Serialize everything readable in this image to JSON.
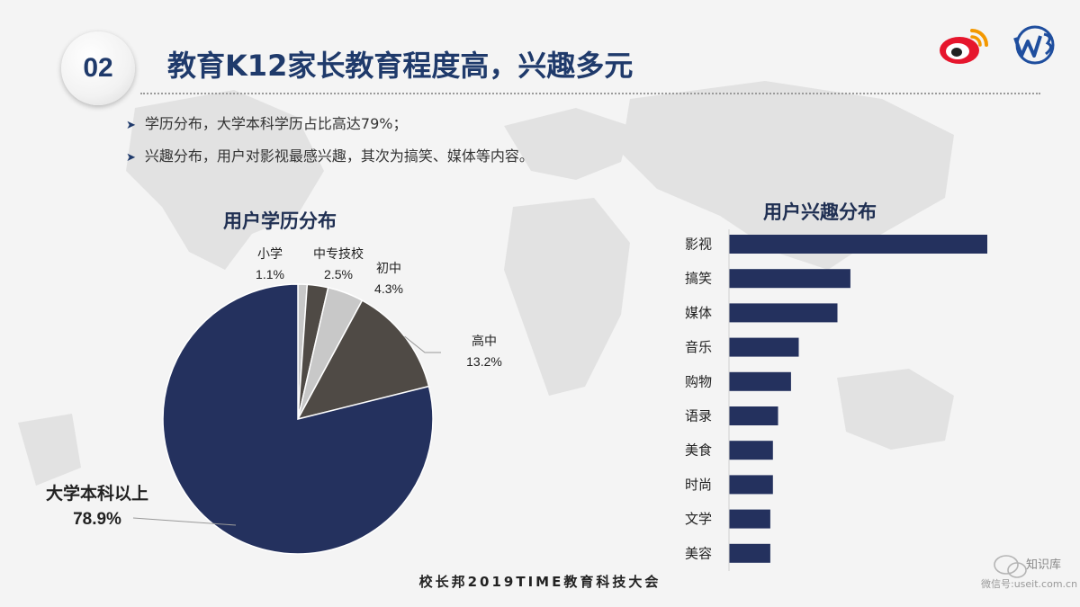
{
  "header": {
    "section_number": "02",
    "title": "教育K12家长教育程度高，兴趣多元"
  },
  "bullets": [
    "学历分布，大学本科学历占比高达79%；",
    "兴趣分布，用户对影视最感兴趣，其次为搞笑、媒体等内容。"
  ],
  "footer": "校长邦2019TIME教育科技大会",
  "watermark": {
    "name": "知识库",
    "site": "微信号:useit.com.cn"
  },
  "colors": {
    "navy": "#24315e",
    "dark_brown": "#4f4a45",
    "gray": "#c8c8c8",
    "title_blue": "#1f3a6b"
  },
  "chart_data": [
    {
      "type": "pie",
      "title": "用户学历分布",
      "slices": [
        {
          "label": "小学",
          "value": 1.1,
          "display": "1.1%",
          "color": "#c8c8c8"
        },
        {
          "label": "中专技校",
          "value": 2.5,
          "display": "2.5%",
          "color": "#4f4a45"
        },
        {
          "label": "初中",
          "value": 4.3,
          "display": "4.3%",
          "color": "#c8c8c8"
        },
        {
          "label": "高中",
          "value": 13.2,
          "display": "13.2%",
          "color": "#4f4a45"
        },
        {
          "label": "大学本科以上",
          "value": 78.9,
          "display": "78.9%",
          "color": "#24315e"
        }
      ]
    },
    {
      "type": "bar",
      "orientation": "horizontal",
      "title": "用户兴趣分布",
      "categories": [
        "影视",
        "搞笑",
        "媒体",
        "音乐",
        "购物",
        "语录",
        "美食",
        "时尚",
        "文学",
        "美容"
      ],
      "values": [
        100,
        47,
        42,
        27,
        24,
        19,
        17,
        17,
        16,
        16
      ],
      "color": "#24315e"
    }
  ]
}
